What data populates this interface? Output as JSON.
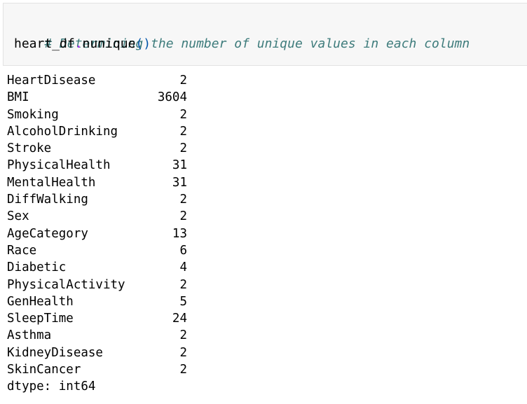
{
  "input": {
    "comment": "# Determining the number of unique values in each column",
    "code_var": "heart_df",
    "code_dot": ".",
    "code_method": "nunique",
    "code_parens": "()"
  },
  "output": {
    "rows": [
      {
        "name": "HeartDisease",
        "value": "2"
      },
      {
        "name": "BMI",
        "value": "3604"
      },
      {
        "name": "Smoking",
        "value": "2"
      },
      {
        "name": "AlcoholDrinking",
        "value": "2"
      },
      {
        "name": "Stroke",
        "value": "2"
      },
      {
        "name": "PhysicalHealth",
        "value": "31"
      },
      {
        "name": "MentalHealth",
        "value": "31"
      },
      {
        "name": "DiffWalking",
        "value": "2"
      },
      {
        "name": "Sex",
        "value": "2"
      },
      {
        "name": "AgeCategory",
        "value": "13"
      },
      {
        "name": "Race",
        "value": "6"
      },
      {
        "name": "Diabetic",
        "value": "4"
      },
      {
        "name": "PhysicalActivity",
        "value": "2"
      },
      {
        "name": "GenHealth",
        "value": "5"
      },
      {
        "name": "SleepTime",
        "value": "24"
      },
      {
        "name": "Asthma",
        "value": "2"
      },
      {
        "name": "KidneyDisease",
        "value": "2"
      },
      {
        "name": "SkinCancer",
        "value": "2"
      }
    ],
    "dtype": "dtype: int64"
  }
}
